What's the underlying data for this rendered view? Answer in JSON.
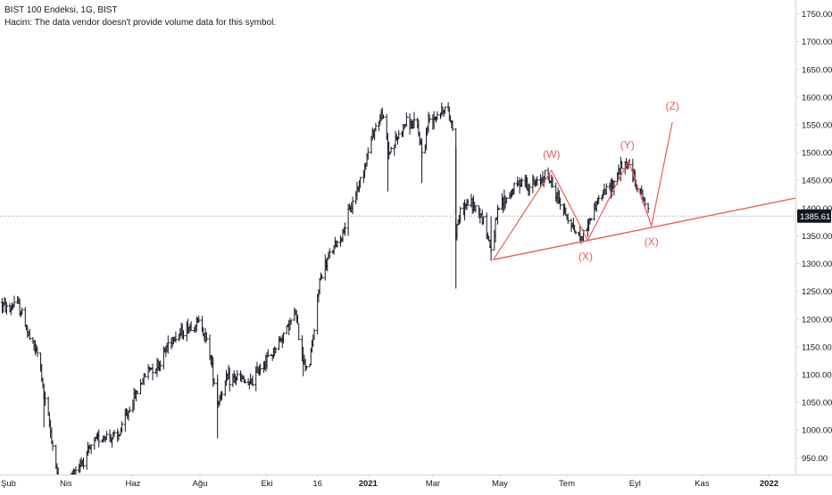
{
  "header": {
    "symbol_line": "BIST 100 Endeksi, 1G, BIST",
    "volume_line": "Hacim: The data vendor doesn't provide volume data for this symbol."
  },
  "colors": {
    "candle": "#131722",
    "annotation": "#f05a5a",
    "price_tag_bg": "#131722",
    "price_tag_text": "#ffffff",
    "axis_text": "#131722",
    "axis_line": "#d1d4dc",
    "dotted_line": "#9598a1"
  },
  "chart_data": {
    "type": "ohlc-bar",
    "title": "BIST 100 Endeksi, 1G, BIST",
    "current_price": 1385.61,
    "current_price_label": "1385.61",
    "ylim": [
      920,
      1775
    ],
    "yticks": [
      950,
      1000,
      1050,
      1100,
      1150,
      1200,
      1250,
      1300,
      1350,
      1400,
      1450,
      1500,
      1550,
      1600,
      1650,
      1700,
      1750
    ],
    "ytick_labels": [
      "950.00",
      "1000.00",
      "1050.00",
      "1100.00",
      "1150.00",
      "1200.00",
      "1250.00",
      "1300.00",
      "1350.00",
      "1400.00",
      "1450.00",
      "1500.00",
      "1550.00",
      "1600.00",
      "1650.00",
      "1700.00",
      "1750.00"
    ],
    "xlim": [
      "2020-02-01",
      "2022-01-25"
    ],
    "xticks": [
      {
        "date": "2020-02-01",
        "label": "Şub",
        "bold": false
      },
      {
        "date": "2020-04-01",
        "label": "Nis",
        "bold": false
      },
      {
        "date": "2020-06-01",
        "label": "Haz",
        "bold": false
      },
      {
        "date": "2020-08-01",
        "label": "Ağu",
        "bold": false
      },
      {
        "date": "2020-10-01",
        "label": "Eki",
        "bold": false
      },
      {
        "date": "2020-11-16",
        "label": "16",
        "bold": false
      },
      {
        "date": "2021-01-01",
        "label": "2021",
        "bold": true
      },
      {
        "date": "2021-03-01",
        "label": "Mar",
        "bold": false
      },
      {
        "date": "2021-05-01",
        "label": "May",
        "bold": false
      },
      {
        "date": "2021-07-01",
        "label": "Tem",
        "bold": false
      },
      {
        "date": "2021-09-01",
        "label": "Eyl",
        "bold": false
      },
      {
        "date": "2021-11-01",
        "label": "Kas",
        "bold": false
      },
      {
        "date": "2022-01-01",
        "label": "2022",
        "bold": true
      }
    ],
    "series": [
      {
        "style": "ohlc",
        "anchors": [
          [
            "2020-02-01",
            1230
          ],
          [
            "2020-02-10",
            1215
          ],
          [
            "2020-02-15",
            1235
          ],
          [
            "2020-02-22",
            1205
          ],
          [
            "2020-02-28",
            1165
          ],
          [
            "2020-03-08",
            1130
          ],
          [
            "2020-03-12",
            1060
          ],
          [
            "2020-03-17",
            1010
          ],
          [
            "2020-03-23",
            935
          ],
          [
            "2020-03-26",
            900
          ],
          [
            "2020-04-02",
            905
          ],
          [
            "2020-04-10",
            930
          ],
          [
            "2020-04-20",
            955
          ],
          [
            "2020-04-30",
            985
          ],
          [
            "2020-05-08",
            990
          ],
          [
            "2020-05-18",
            985
          ],
          [
            "2020-05-28",
            1035
          ],
          [
            "2020-06-06",
            1075
          ],
          [
            "2020-06-15",
            1110
          ],
          [
            "2020-06-25",
            1120
          ],
          [
            "2020-07-05",
            1165
          ],
          [
            "2020-07-15",
            1175
          ],
          [
            "2020-07-25",
            1190
          ],
          [
            "2020-08-02",
            1195
          ],
          [
            "2020-08-10",
            1140
          ],
          [
            "2020-08-17",
            1050
          ],
          [
            "2020-08-25",
            1090
          ],
          [
            "2020-09-05",
            1095
          ],
          [
            "2020-09-15",
            1080
          ],
          [
            "2020-09-25",
            1115
          ],
          [
            "2020-10-05",
            1135
          ],
          [
            "2020-10-15",
            1170
          ],
          [
            "2020-10-27",
            1210
          ],
          [
            "2020-11-02",
            1130
          ],
          [
            "2020-11-08",
            1110
          ],
          [
            "2020-11-13",
            1180
          ],
          [
            "2020-11-18",
            1270
          ],
          [
            "2020-11-28",
            1320
          ],
          [
            "2020-12-08",
            1350
          ],
          [
            "2020-12-18",
            1410
          ],
          [
            "2020-12-28",
            1470
          ],
          [
            "2021-01-06",
            1540
          ],
          [
            "2021-01-14",
            1570
          ],
          [
            "2021-01-20",
            1500
          ],
          [
            "2021-01-27",
            1525
          ],
          [
            "2021-02-05",
            1555
          ],
          [
            "2021-02-15",
            1545
          ],
          [
            "2021-02-20",
            1490
          ],
          [
            "2021-02-25",
            1560
          ],
          [
            "2021-03-05",
            1570
          ],
          [
            "2021-03-12",
            1580
          ],
          [
            "2021-03-17",
            1560
          ],
          [
            "2021-03-19",
            1545
          ],
          [
            "2021-03-22",
            1360
          ],
          [
            "2021-03-26",
            1390
          ],
          [
            "2021-04-02",
            1410
          ],
          [
            "2021-04-10",
            1400
          ],
          [
            "2021-04-16",
            1380
          ],
          [
            "2021-04-23",
            1325
          ],
          [
            "2021-04-30",
            1400
          ],
          [
            "2021-05-10",
            1425
          ],
          [
            "2021-05-20",
            1450
          ],
          [
            "2021-05-28",
            1440
          ],
          [
            "2021-06-05",
            1445
          ],
          [
            "2021-06-12",
            1465
          ],
          [
            "2021-06-20",
            1430
          ],
          [
            "2021-06-30",
            1390
          ],
          [
            "2021-07-08",
            1360
          ],
          [
            "2021-07-14",
            1345
          ],
          [
            "2021-07-20",
            1370
          ],
          [
            "2021-07-28",
            1410
          ],
          [
            "2021-08-05",
            1430
          ],
          [
            "2021-08-12",
            1445
          ],
          [
            "2021-08-18",
            1470
          ],
          [
            "2021-08-26",
            1480
          ],
          [
            "2021-09-01",
            1450
          ],
          [
            "2021-09-08",
            1420
          ],
          [
            "2021-09-14",
            1385
          ]
        ]
      }
    ],
    "spikes": [
      {
        "date": "2020-03-12",
        "high": 1075,
        "low": 1005
      },
      {
        "date": "2020-08-17",
        "high": 1100,
        "low": 985
      },
      {
        "date": "2020-11-03",
        "high": 1150,
        "low": 1097
      },
      {
        "date": "2021-01-19",
        "high": 1520,
        "low": 1430
      },
      {
        "date": "2021-02-19",
        "high": 1510,
        "low": 1445
      },
      {
        "date": "2021-03-22",
        "high": 1510,
        "low": 1255
      },
      {
        "date": "2021-04-23",
        "high": 1385,
        "low": 1305
      }
    ],
    "annotations": {
      "wave_path": [
        [
          "2021-04-25",
          1307
        ],
        [
          "2021-06-17",
          1468
        ],
        [
          "2021-07-20",
          1342
        ],
        [
          "2021-08-26",
          1485
        ],
        [
          "2021-09-16",
          1368
        ],
        [
          "2021-10-05",
          1555
        ]
      ],
      "trendline": [
        [
          "2021-04-25",
          1307
        ],
        [
          "2022-01-25",
          1418
        ]
      ],
      "labels": [
        {
          "text": "(W)",
          "date": "2021-06-17",
          "value": 1468,
          "pos": "above"
        },
        {
          "text": "(X)",
          "date": "2021-07-18",
          "value": 1342,
          "pos": "below"
        },
        {
          "text": "(Y)",
          "date": "2021-08-25",
          "value": 1485,
          "pos": "above"
        },
        {
          "text": "(X)",
          "date": "2021-09-16",
          "value": 1368,
          "pos": "below"
        },
        {
          "text": "(Z)",
          "date": "2021-10-05",
          "value": 1555,
          "pos": "above"
        }
      ]
    }
  }
}
